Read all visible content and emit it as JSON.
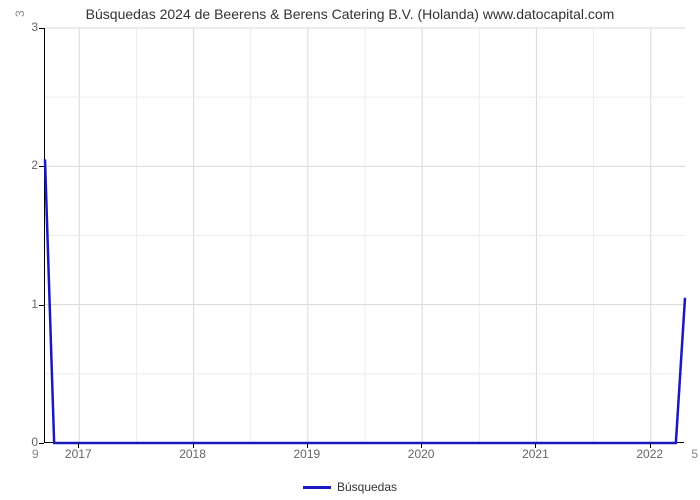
{
  "chart": {
    "type": "line",
    "title": "Búsquedas 2024 de Beerens & Berens Catering B.V. (Holanda) www.datocapital.com",
    "title_fontsize": 14,
    "title_color": "#333333",
    "background_color": "#ffffff",
    "plot_border_color": "#000000",
    "grid_color": "#d9d9d9",
    "grid_minor_color": "#ececec",
    "x_axis": {
      "ticks": [
        2017,
        2018,
        2019,
        2020,
        2021,
        2022
      ],
      "range": [
        2016.7,
        2022.3
      ],
      "label_fontsize": 12,
      "label_color": "#666666"
    },
    "y_axis": {
      "ticks": [
        0,
        1,
        2,
        3
      ],
      "range": [
        0,
        3
      ],
      "label_fontsize": 12,
      "label_color": "#666666"
    },
    "corner_top_left": "3",
    "corner_bottom_left": "9",
    "corner_bottom_right": "5",
    "series": {
      "name": "Búsquedas",
      "color": "#1919bd",
      "line_width": 2.5,
      "x": [
        2016.7,
        2016.78,
        2022.22,
        2022.3
      ],
      "y": [
        2.05,
        0,
        0,
        1.05
      ]
    },
    "legend": {
      "label": "Búsquedas",
      "swatch_color": "#1919bd"
    }
  }
}
